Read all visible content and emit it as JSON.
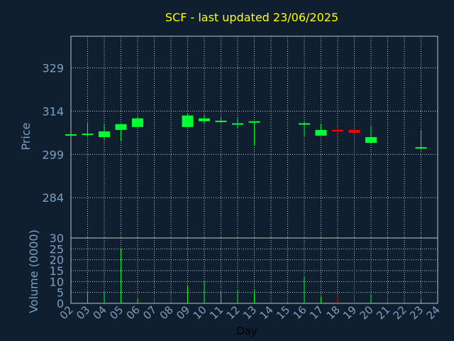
{
  "chart_data": {
    "type": "candlestick",
    "title": "SCF - last updated 23/06/2025",
    "price_panel": {
      "ylabel": "Price",
      "ylim": [
        270,
        340
      ],
      "yticks": [
        284,
        299,
        314,
        329
      ]
    },
    "volume_panel": {
      "ylabel": "Volume (0000)",
      "ylim": [
        0,
        30
      ],
      "yticks": [
        0,
        5,
        10,
        15,
        20,
        25,
        30
      ]
    },
    "xlabel": "Day",
    "x_tick_labels": [
      "02",
      "03",
      "04",
      "05",
      "06",
      "07",
      "08",
      "09",
      "10",
      "11",
      "12",
      "13",
      "14",
      "15",
      "16",
      "17",
      "18",
      "19",
      "20",
      "21",
      "22",
      "23",
      "24"
    ],
    "grid": true,
    "colors": {
      "background": "#0f1f30",
      "up": "#00ff33",
      "down": "#ff0000",
      "grid": "#c0c0c0",
      "title": "#ffff00",
      "axis_text": "#7f9fc0"
    },
    "candles": [
      {
        "day": "02",
        "open": 306.0,
        "high": 306.0,
        "low": 306.0,
        "close": 306.0,
        "volume": 0
      },
      {
        "day": "03",
        "open": 306.0,
        "high": 310.0,
        "low": 305.0,
        "close": 306.2,
        "volume": 5
      },
      {
        "day": "04",
        "open": 305.0,
        "high": 309.5,
        "low": 304.0,
        "close": 307.0,
        "volume": 5
      },
      {
        "day": "05",
        "open": 307.5,
        "high": 309.5,
        "low": 303.5,
        "close": 309.5,
        "volume": 25
      },
      {
        "day": "06",
        "open": 308.5,
        "high": 312.0,
        "low": 308.5,
        "close": 311.5,
        "volume": 2
      },
      {
        "day": "09",
        "open": 308.5,
        "high": 313.0,
        "low": 308.5,
        "close": 312.5,
        "volume": 8
      },
      {
        "day": "10",
        "open": 310.5,
        "high": 312.5,
        "low": 309.5,
        "close": 311.5,
        "volume": 10
      },
      {
        "day": "11",
        "open": 310.5,
        "high": 312.0,
        "low": 310.0,
        "close": 310.7,
        "volume": 5
      },
      {
        "day": "12",
        "open": 309.5,
        "high": 311.5,
        "low": 308.0,
        "close": 309.8,
        "volume": 6
      },
      {
        "day": "13",
        "open": 310.0,
        "high": 310.5,
        "low": 302.0,
        "close": 310.5,
        "volume": 6
      },
      {
        "day": "16",
        "open": 309.5,
        "high": 310.5,
        "low": 305.0,
        "close": 309.8,
        "volume": 12
      },
      {
        "day": "17",
        "open": 305.5,
        "high": 309.5,
        "low": 305.5,
        "close": 307.5,
        "volume": 3
      },
      {
        "day": "18",
        "open": 307.5,
        "high": 308.5,
        "low": 305.5,
        "close": 307.2,
        "volume": 3
      },
      {
        "day": "19",
        "open": 307.5,
        "high": 307.5,
        "low": 298.5,
        "close": 306.5,
        "volume": 19
      },
      {
        "day": "20",
        "open": 303.0,
        "high": 309.0,
        "low": 303.0,
        "close": 305.0,
        "volume": 4
      },
      {
        "day": "23",
        "open": 301.0,
        "high": 307.5,
        "low": 300.5,
        "close": 301.5,
        "volume": 2
      }
    ]
  }
}
